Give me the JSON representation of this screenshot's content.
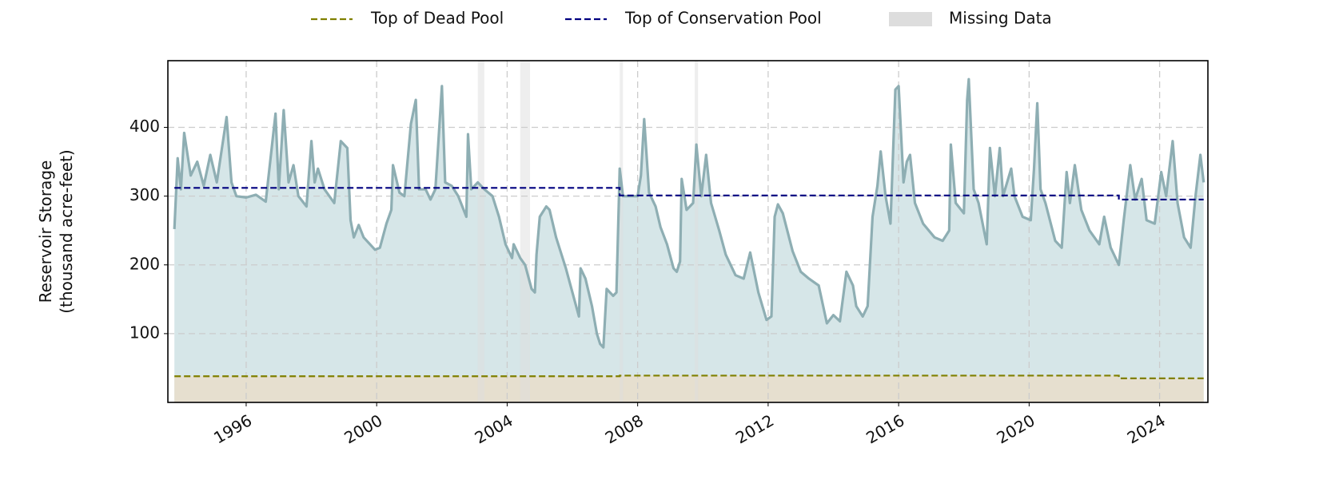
{
  "chart_data": {
    "type": "line",
    "ylabel": [
      "Reservoir Storage",
      "(thousand acre-feet)"
    ],
    "xlim": [
      1993.6,
      2025.48
    ],
    "xticks": [
      1996,
      2000,
      2004,
      2008,
      2012,
      2016,
      2020,
      2024
    ],
    "ylim": [
      0,
      497
    ],
    "yticks": [
      100,
      200,
      300,
      400
    ],
    "grid": true,
    "legend": "top",
    "storage": {
      "color": "#8eaeb3",
      "fill": "#d6e6e8",
      "x": [
        1993.8,
        1993.9,
        1994.0,
        1994.1,
        1994.3,
        1994.5,
        1994.7,
        1994.9,
        1995.1,
        1995.4,
        1995.55,
        1995.7,
        1996.0,
        1996.3,
        1996.6,
        1996.9,
        1997.0,
        1997.15,
        1997.3,
        1997.45,
        1997.6,
        1997.85,
        1998.0,
        1998.1,
        1998.2,
        1998.4,
        1998.7,
        1998.9,
        1999.1,
        1999.2,
        1999.3,
        1999.45,
        1999.6,
        1999.95,
        2000.1,
        2000.3,
        2000.45,
        2000.5,
        2000.7,
        2000.85,
        2001.05,
        2001.2,
        2001.3,
        2001.5,
        2001.65,
        2001.8,
        2002.0,
        2002.1,
        2002.3,
        2002.5,
        2002.75,
        2002.8,
        2002.9,
        2003.1,
        2003.3,
        2003.55,
        2003.75,
        2003.95,
        2004.15,
        2004.2,
        2004.4,
        2004.55,
        2004.75,
        2004.85,
        2004.9,
        2005.0,
        2005.2,
        2005.3,
        2005.5,
        2005.8,
        2006.0,
        2006.2,
        2006.25,
        2006.4,
        2006.6,
        2006.75,
        2006.85,
        2006.95,
        2007.05,
        2007.25,
        2007.35,
        2007.45,
        2007.55,
        2007.8,
        2008.0,
        2008.1,
        2008.2,
        2008.35,
        2008.55,
        2008.7,
        2008.9,
        2009.1,
        2009.2,
        2009.3,
        2009.35,
        2009.5,
        2009.7,
        2009.8,
        2009.95,
        2010.1,
        2010.25,
        2010.5,
        2010.7,
        2011.0,
        2011.25,
        2011.45,
        2011.7,
        2011.95,
        2012.1,
        2012.2,
        2012.3,
        2012.45,
        2012.75,
        2013.0,
        2013.25,
        2013.55,
        2013.8,
        2014.0,
        2014.2,
        2014.4,
        2014.6,
        2014.7,
        2014.9,
        2015.05,
        2015.2,
        2015.35,
        2015.45,
        2015.6,
        2015.75,
        2015.9,
        2016.0,
        2016.15,
        2016.25,
        2016.35,
        2016.5,
        2016.75,
        2017.1,
        2017.35,
        2017.55,
        2017.6,
        2017.75,
        2018.0,
        2018.1,
        2018.15,
        2018.3,
        2018.45,
        2018.7,
        2018.8,
        2018.95,
        2019.1,
        2019.2,
        2019.45,
        2019.55,
        2019.8,
        2020.05,
        2020.15,
        2020.25,
        2020.35,
        2020.5,
        2020.8,
        2021.0,
        2021.15,
        2021.25,
        2021.4,
        2021.6,
        2021.85,
        2022.15,
        2022.3,
        2022.5,
        2022.75,
        2022.9,
        2023.1,
        2023.25,
        2023.45,
        2023.6,
        2023.85,
        2024.05,
        2024.2,
        2024.4,
        2024.55,
        2024.75,
        2024.95,
        2025.1,
        2025.25,
        2025.35
      ],
      "values": [
        252,
        355,
        310,
        392,
        330,
        350,
        315,
        360,
        320,
        415,
        320,
        300,
        298,
        302,
        292,
        420,
        310,
        425,
        320,
        345,
        300,
        285,
        380,
        320,
        340,
        310,
        290,
        380,
        370,
        265,
        240,
        258,
        240,
        222,
        225,
        260,
        280,
        345,
        305,
        300,
        405,
        440,
        310,
        310,
        295,
        310,
        460,
        320,
        315,
        300,
        270,
        390,
        310,
        320,
        310,
        300,
        270,
        230,
        210,
        230,
        210,
        200,
        165,
        160,
        215,
        270,
        285,
        280,
        240,
        195,
        160,
        125,
        195,
        180,
        140,
        100,
        85,
        80,
        165,
        155,
        160,
        340,
        300,
        300,
        300,
        330,
        412,
        305,
        285,
        255,
        230,
        195,
        190,
        205,
        325,
        280,
        290,
        375,
        300,
        360,
        290,
        250,
        215,
        185,
        180,
        218,
        160,
        120,
        125,
        270,
        288,
        275,
        220,
        190,
        180,
        170,
        115,
        127,
        118,
        190,
        170,
        140,
        125,
        140,
        270,
        315,
        365,
        300,
        260,
        455,
        460,
        320,
        350,
        360,
        290,
        260,
        240,
        235,
        250,
        375,
        290,
        275,
        440,
        470,
        310,
        290,
        230,
        370,
        300,
        370,
        300,
        340,
        300,
        270,
        265,
        340,
        435,
        310,
        290,
        235,
        225,
        335,
        290,
        345,
        280,
        250,
        230,
        270,
        225,
        200,
        265,
        345,
        295,
        325,
        265,
        260,
        335,
        300,
        380,
        290,
        240,
        225,
        300,
        360,
        320
      ]
    },
    "dead_fill": "#e6dfcf",
    "series": [
      {
        "name": "Top of Dead Pool",
        "color": "#808000",
        "x": [
          1993.8,
          2007.45,
          2007.45,
          2022.75,
          2022.75,
          2025.35
        ],
        "values": [
          38,
          38,
          39,
          39,
          35,
          35
        ]
      },
      {
        "name": "Top of Conservation Pool",
        "color": "#000080",
        "x": [
          1993.8,
          2007.45,
          2007.45,
          2022.75,
          2022.75,
          2025.35
        ],
        "values": [
          312,
          312,
          301,
          301,
          295,
          295
        ]
      }
    ],
    "missing": {
      "name": "Missing Data",
      "color": "#dddddd",
      "ranges": [
        [
          2003.1,
          2003.3
        ],
        [
          2004.4,
          2004.7
        ],
        [
          2007.45,
          2007.55
        ],
        [
          2009.75,
          2009.85
        ]
      ]
    }
  }
}
